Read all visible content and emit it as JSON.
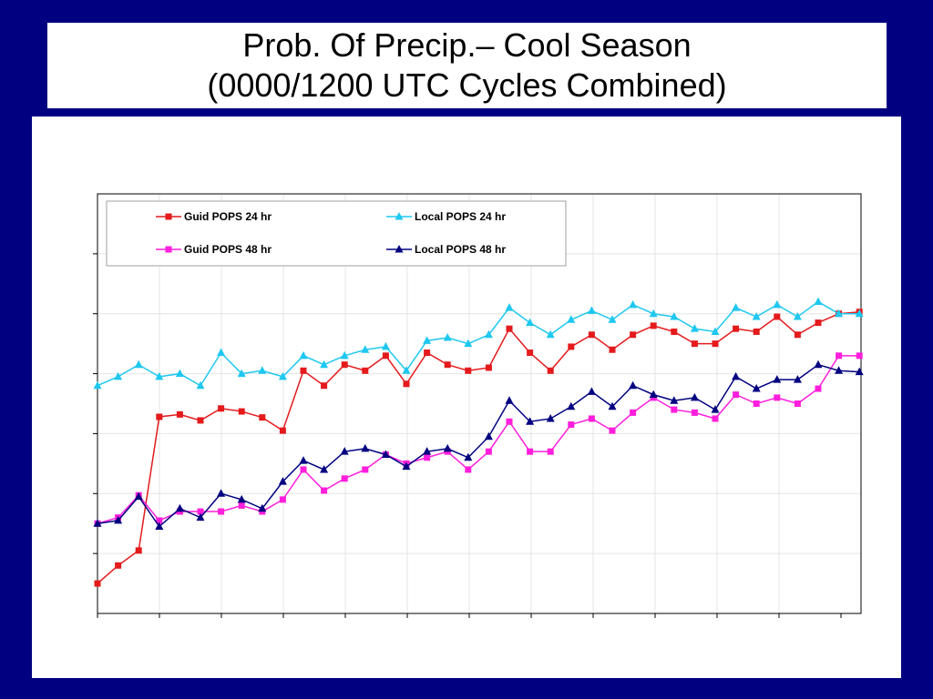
{
  "title": {
    "line1": "Prob. Of Precip.– Cool Season",
    "line2": "(0000/1200 UTC Cycles Combined)"
  },
  "colors": {
    "background": "#000080",
    "guid24": "#e41a1c",
    "local24": "#1ec8f0",
    "guid48": "#ff1edc",
    "local48": "#000080"
  },
  "chart_data": {
    "type": "line",
    "title": "",
    "xlabel": "",
    "ylabel": "",
    "ylim": [
      0,
      7
    ],
    "grid": true,
    "legend_position": "top-left",
    "x": [
      1,
      2,
      3,
      4,
      5,
      6,
      7,
      8,
      9,
      10,
      11,
      12,
      13,
      14,
      15,
      16,
      17,
      18,
      19,
      20,
      21,
      22,
      23,
      24,
      25,
      26,
      27,
      28,
      29,
      30,
      31,
      32,
      33,
      34,
      35,
      36,
      37,
      38
    ],
    "series": [
      {
        "name": "Guid POPS 24 hr",
        "color": "#e41a1c",
        "marker": "square",
        "values": [
          0.5,
          0.8,
          1.05,
          3.28,
          3.32,
          3.22,
          3.42,
          3.37,
          3.27,
          3.05,
          4.05,
          3.8,
          4.15,
          4.05,
          4.3,
          3.83,
          4.35,
          4.15,
          4.05,
          4.1,
          4.75,
          4.35,
          4.05,
          4.45,
          4.65,
          4.4,
          4.65,
          4.8,
          4.7,
          4.5,
          4.5,
          4.75,
          4.7,
          4.95,
          4.65,
          4.85,
          5.0,
          5.03
        ]
      },
      {
        "name": "Local POPS 24 hr",
        "color": "#1ec8f0",
        "marker": "triangle",
        "values": [
          3.8,
          3.95,
          4.15,
          3.95,
          4.0,
          3.8,
          4.35,
          4.0,
          4.05,
          3.95,
          4.3,
          4.15,
          4.3,
          4.4,
          4.45,
          4.05,
          4.55,
          4.6,
          4.5,
          4.65,
          5.1,
          4.85,
          4.65,
          4.9,
          5.05,
          4.9,
          5.15,
          5.0,
          4.95,
          4.75,
          4.7,
          5.1,
          4.95,
          5.15,
          4.95,
          5.2,
          5.0,
          5.0
        ]
      },
      {
        "name": "Guid POPS 48 hr",
        "color": "#ff1edc",
        "marker": "square",
        "values": [
          1.5,
          1.6,
          1.97,
          1.55,
          1.7,
          1.7,
          1.7,
          1.8,
          1.7,
          1.9,
          2.4,
          2.05,
          2.25,
          2.4,
          2.65,
          2.5,
          2.6,
          2.7,
          2.4,
          2.7,
          3.2,
          2.7,
          2.7,
          3.15,
          3.25,
          3.05,
          3.35,
          3.6,
          3.4,
          3.35,
          3.25,
          3.65,
          3.5,
          3.6,
          3.5,
          3.75,
          4.3,
          4.3
        ]
      },
      {
        "name": "Local POPS 48 hr",
        "color": "#000080",
        "marker": "triangle",
        "values": [
          1.5,
          1.55,
          1.95,
          1.45,
          1.75,
          1.6,
          2.0,
          1.9,
          1.75,
          2.2,
          2.55,
          2.4,
          2.7,
          2.75,
          2.65,
          2.45,
          2.7,
          2.75,
          2.6,
          2.95,
          3.55,
          3.2,
          3.25,
          3.45,
          3.7,
          3.45,
          3.8,
          3.65,
          3.55,
          3.6,
          3.4,
          3.95,
          3.75,
          3.9,
          3.9,
          4.15,
          4.05,
          4.03
        ]
      }
    ]
  }
}
